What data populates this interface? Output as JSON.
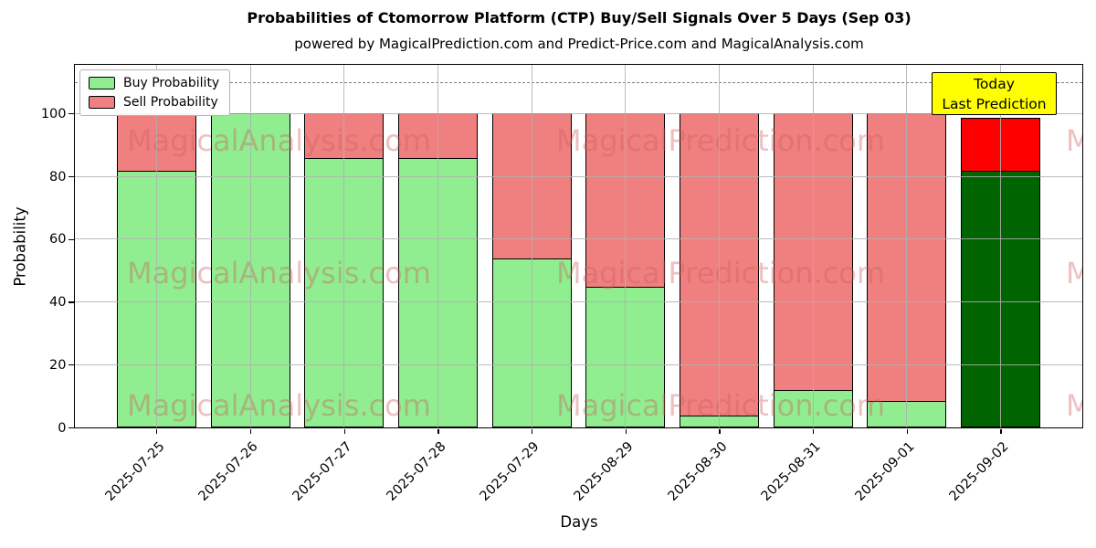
{
  "chart_data": {
    "type": "bar",
    "stacked": true,
    "title": "Probabilities of Ctomorrow Platform (CTP) Buy/Sell Signals Over 5 Days (Sep 03)",
    "subtitle": "powered by MagicalPrediction.com and Predict-Price.com and MagicalAnalysis.com",
    "xlabel": "Days",
    "ylabel": "Probability",
    "categories": [
      "2025-07-25",
      "2025-07-26",
      "2025-07-27",
      "2025-07-28",
      "2025-07-29",
      "2025-08-29",
      "2025-08-30",
      "2025-08-31",
      "2025-09-01",
      "2025-09-02"
    ],
    "series": [
      {
        "name": "Buy Probability",
        "color": "#90EE90",
        "today_color": "#006400",
        "values": [
          82,
          100,
          86,
          86,
          54,
          45,
          4,
          12,
          8.5,
          82
        ]
      },
      {
        "name": "Sell Probability",
        "color": "#F08080",
        "today_color": "#FF0000",
        "values": [
          18,
          0,
          14,
          14,
          46,
          55,
          96,
          88,
          91.5,
          16.5
        ]
      }
    ],
    "yticks": [
      0,
      20,
      40,
      60,
      80,
      100
    ],
    "ylim": [
      0,
      115.5
    ],
    "grid": true,
    "legend_position": "upper left",
    "dashed_line_y": 110,
    "bar_edge_color": "#000000",
    "annotation": {
      "lines": [
        "Today",
        "Last Prediction"
      ],
      "bg_color": "#FFFF00",
      "border_color": "#000000"
    },
    "watermark": {
      "left_text": "MagicalAnalysis.com",
      "right_text": "MagicalPrediction.com",
      "partial_text": "M",
      "rows": 3,
      "color": "#CD5C5C"
    }
  }
}
